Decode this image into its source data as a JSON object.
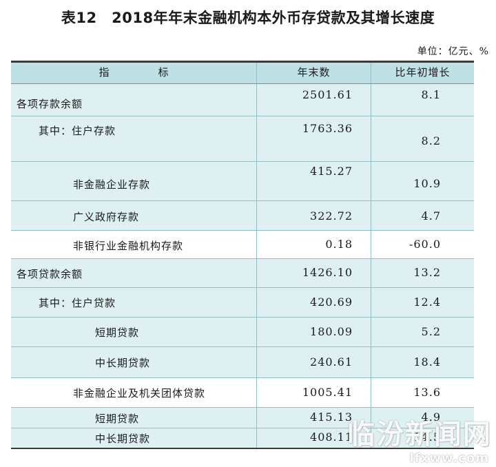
{
  "title": "表12　2018年年末金融机构本外币存贷款及其增长速度",
  "unit": "单位：亿元、%",
  "headers": [
    "指　标",
    "年末数",
    "比年初增长"
  ],
  "rows": [
    {
      "label": "各项存款余额",
      "value": "2501.61",
      "growth": "8.1"
    },
    {
      "label": "其中：住户存款",
      "value": "1763.36",
      "growth": "8.2"
    },
    {
      "label": "非金融企业存款",
      "value": "415.27",
      "growth": "10.9"
    },
    {
      "label": "广义政府存款",
      "value": "322.72",
      "growth": "4.7"
    },
    {
      "label": "非银行业金融机构存款",
      "value": "0.18",
      "growth": "-60.0"
    },
    {
      "label": "各项贷款余额",
      "value": "1426.10",
      "growth": "13.2"
    },
    {
      "label": "其中：住户贷款",
      "value": "420.69",
      "growth": "12.4"
    },
    {
      "label": "短期贷款",
      "value": "180.09",
      "growth": "5.2"
    },
    {
      "label": "中长期贷款",
      "value": "240.61",
      "growth": "18.4"
    },
    {
      "label": "非金融企业及机关团体贷款",
      "value": "1005.41",
      "growth": "13.6"
    },
    {
      "label": "短期贷款",
      "value": "415.13",
      "growth": "4.9"
    },
    {
      "label": "中长期贷款",
      "value": "408.11",
      "growth": "14.5"
    }
  ],
  "watermark": {
    "text": "临汾新闻网",
    "sub": "lfxww.com"
  }
}
